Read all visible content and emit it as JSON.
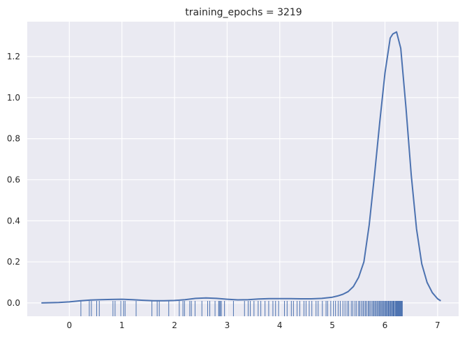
{
  "chart_data": {
    "type": "line",
    "title": "training_epochs = 3219",
    "xlabel": "",
    "ylabel": "",
    "xlim": [
      -0.8,
      7.4
    ],
    "ylim": [
      -0.065,
      1.37
    ],
    "grid": true,
    "style": "seaborn darkgrid",
    "colors": {
      "background": "#EAEAF2",
      "grid": "#FFFFFF",
      "line": "#4C72B0"
    },
    "x_ticks": [
      {
        "value": 0,
        "label": "0"
      },
      {
        "value": 1,
        "label": "1"
      },
      {
        "value": 2,
        "label": "2"
      },
      {
        "value": 3,
        "label": "3"
      },
      {
        "value": 4,
        "label": "4"
      },
      {
        "value": 5,
        "label": "5"
      },
      {
        "value": 6,
        "label": "6"
      },
      {
        "value": 7,
        "label": "7"
      }
    ],
    "y_ticks": [
      {
        "value": 0.0,
        "label": "0.0"
      },
      {
        "value": 0.2,
        "label": "0.2"
      },
      {
        "value": 0.4,
        "label": "0.4"
      },
      {
        "value": 0.6,
        "label": "0.6"
      },
      {
        "value": 0.8,
        "label": "0.8"
      },
      {
        "value": 1.0,
        "label": "1.0"
      },
      {
        "value": 1.2,
        "label": "1.2"
      }
    ],
    "series": [
      {
        "kind": "kde",
        "x": [
          -0.53,
          -0.2,
          0.0,
          0.2,
          0.4,
          0.6,
          0.8,
          1.0,
          1.2,
          1.4,
          1.6,
          1.8,
          2.0,
          2.2,
          2.4,
          2.6,
          2.8,
          3.0,
          3.2,
          3.4,
          3.6,
          3.8,
          4.0,
          4.2,
          4.4,
          4.6,
          4.8,
          5.0,
          5.1,
          5.2,
          5.3,
          5.4,
          5.5,
          5.6,
          5.7,
          5.8,
          5.9,
          6.0,
          6.1,
          6.15,
          6.22,
          6.3,
          6.4,
          6.5,
          6.6,
          6.7,
          6.8,
          6.9,
          7.0,
          7.06
        ],
        "y": [
          0.0,
          0.002,
          0.005,
          0.01,
          0.014,
          0.016,
          0.017,
          0.018,
          0.016,
          0.013,
          0.011,
          0.011,
          0.012,
          0.016,
          0.022,
          0.024,
          0.022,
          0.018,
          0.015,
          0.016,
          0.019,
          0.021,
          0.021,
          0.021,
          0.02,
          0.02,
          0.022,
          0.028,
          0.034,
          0.042,
          0.055,
          0.08,
          0.125,
          0.2,
          0.38,
          0.62,
          0.88,
          1.12,
          1.29,
          1.31,
          1.32,
          1.24,
          0.95,
          0.62,
          0.36,
          0.19,
          0.1,
          0.05,
          0.02,
          0.01
        ]
      },
      {
        "kind": "rug",
        "values": [
          0.22,
          0.38,
          0.42,
          0.52,
          0.57,
          0.83,
          0.87,
          0.98,
          1.03,
          1.06,
          1.27,
          1.57,
          1.67,
          1.71,
          1.89,
          2.09,
          2.16,
          2.19,
          2.29,
          2.32,
          2.39,
          2.52,
          2.63,
          2.67,
          2.77,
          2.84,
          2.85,
          2.87,
          2.89,
          2.95,
          3.12,
          3.33,
          3.4,
          3.44,
          3.51,
          3.59,
          3.64,
          3.72,
          3.79,
          3.87,
          3.92,
          3.98,
          4.09,
          4.14,
          4.22,
          4.26,
          4.33,
          4.38,
          4.46,
          4.5,
          4.56,
          4.61,
          4.69,
          4.73,
          4.81,
          4.88,
          4.91,
          4.97,
          5.02,
          5.06,
          5.11,
          5.15,
          5.2,
          5.24,
          5.28,
          5.31,
          5.36,
          5.39,
          5.43,
          5.46,
          5.5,
          5.52,
          5.55,
          5.58,
          5.6,
          5.63,
          5.65,
          5.68,
          5.7,
          5.72,
          5.75,
          5.77,
          5.79,
          5.81,
          5.83,
          5.85,
          5.87,
          5.89,
          5.9,
          5.92,
          5.94,
          5.95,
          5.97,
          5.98,
          6.0,
          6.01,
          6.03,
          6.04,
          6.06,
          6.07,
          6.08,
          6.1,
          6.11,
          6.12,
          6.14,
          6.15,
          6.16,
          6.17,
          6.18,
          6.2,
          6.21,
          6.22,
          6.23,
          6.24,
          6.25,
          6.26,
          6.27,
          6.28,
          6.29,
          6.3,
          6.31,
          6.32,
          6.33
        ]
      }
    ]
  }
}
